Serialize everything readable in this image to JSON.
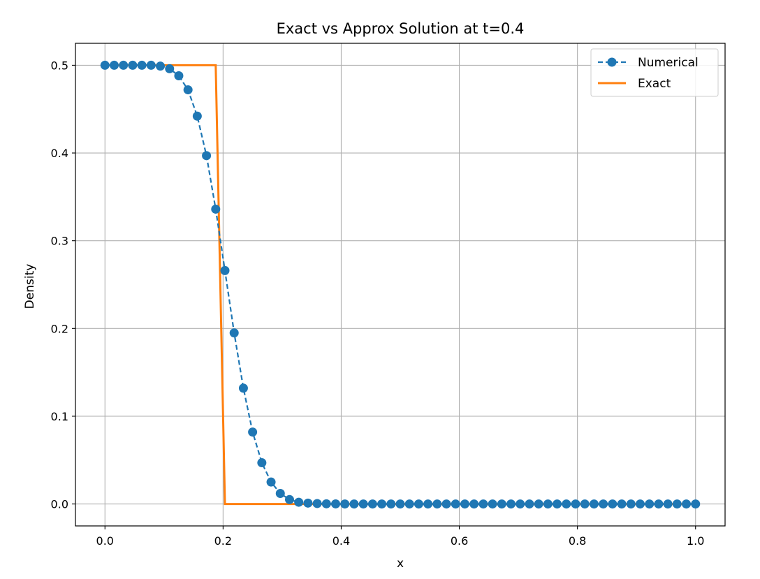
{
  "chart_data": {
    "type": "line",
    "title": "Exact vs Approx Solution at t=0.4",
    "xlabel": "x",
    "ylabel": "Density",
    "xlim": [
      -0.05,
      1.05
    ],
    "ylim": [
      -0.025,
      0.525
    ],
    "grid": true,
    "legend_position": "top-right",
    "x_ticks": [
      0.0,
      0.2,
      0.4,
      0.6,
      0.8,
      1.0
    ],
    "x_tick_labels": [
      "0.0",
      "0.2",
      "0.4",
      "0.6",
      "0.8",
      "1.0"
    ],
    "y_ticks": [
      0.0,
      0.1,
      0.2,
      0.3,
      0.4,
      0.5
    ],
    "y_tick_labels": [
      "0.0",
      "0.1",
      "0.2",
      "0.3",
      "0.4",
      "0.5"
    ],
    "series": [
      {
        "name": "Numerical",
        "color": "#1f77b4",
        "style": "dashed-markers",
        "x": [
          0.0,
          0.015625,
          0.03125,
          0.046875,
          0.0625,
          0.078125,
          0.09375,
          0.109375,
          0.125,
          0.140625,
          0.15625,
          0.171875,
          0.1875,
          0.203125,
          0.21875,
          0.234375,
          0.25,
          0.265625,
          0.28125,
          0.296875,
          0.3125,
          0.328125,
          0.34375,
          0.359375,
          0.375,
          0.390625,
          0.40625,
          0.421875,
          0.4375,
          0.453125,
          0.46875,
          0.484375,
          0.5,
          0.515625,
          0.53125,
          0.546875,
          0.5625,
          0.578125,
          0.59375,
          0.609375,
          0.625,
          0.640625,
          0.65625,
          0.671875,
          0.6875,
          0.703125,
          0.71875,
          0.734375,
          0.75,
          0.765625,
          0.78125,
          0.796875,
          0.8125,
          0.828125,
          0.84375,
          0.859375,
          0.875,
          0.890625,
          0.90625,
          0.921875,
          0.9375,
          0.953125,
          0.96875,
          0.984375,
          1.0
        ],
        "y": [
          0.5,
          0.5,
          0.5,
          0.5,
          0.5,
          0.5,
          0.499,
          0.496,
          0.488,
          0.472,
          0.442,
          0.397,
          0.336,
          0.266,
          0.195,
          0.132,
          0.082,
          0.047,
          0.025,
          0.012,
          0.005,
          0.002,
          0.001,
          0.0005,
          0.0002,
          0.0001,
          0.0,
          0.0,
          0.0,
          0.0,
          0.0,
          0.0,
          0.0,
          0.0,
          0.0,
          0.0,
          0.0,
          0.0,
          0.0,
          0.0,
          0.0,
          0.0,
          0.0,
          0.0,
          0.0,
          0.0,
          0.0,
          0.0,
          0.0,
          0.0,
          0.0,
          0.0,
          0.0,
          0.0,
          0.0,
          0.0,
          0.0,
          0.0,
          0.0,
          0.0,
          0.0,
          0.0,
          0.0,
          0.0,
          0.0
        ]
      },
      {
        "name": "Exact",
        "color": "#ff7f0e",
        "style": "solid",
        "x": [
          0.0,
          0.1875,
          0.203125,
          1.0
        ],
        "y": [
          0.5,
          0.5,
          0.0,
          0.0
        ]
      }
    ]
  }
}
